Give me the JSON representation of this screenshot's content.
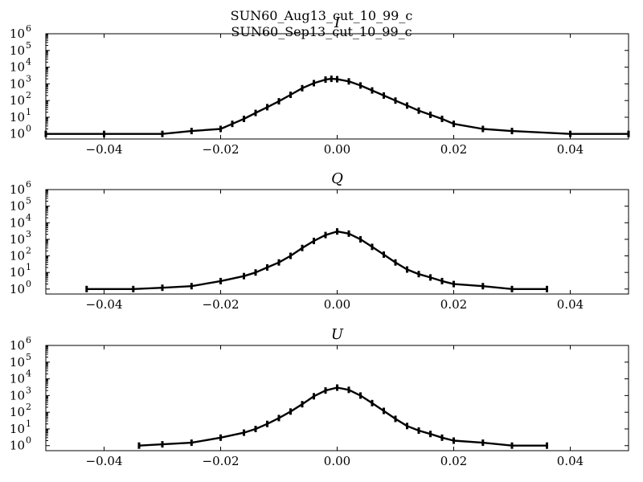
{
  "figure": {
    "title_lines": [
      "SUN60_Aug13_cut_10_99_c",
      "SUN60_Sep13_cut_10_99_c"
    ]
  },
  "chart_data": [
    {
      "type": "histogram",
      "title": "I",
      "xlim": [
        -0.05,
        0.05
      ],
      "ylim": [
        0.5,
        1000000
      ],
      "yscale": "log",
      "xticks": [
        "-0.04",
        "-0.02",
        "0.00",
        "0.02",
        "0.04"
      ],
      "yticks": [
        {
          "base": "10",
          "exp": "0"
        },
        {
          "base": "10",
          "exp": "1"
        },
        {
          "base": "10",
          "exp": "2"
        },
        {
          "base": "10",
          "exp": "3"
        },
        {
          "base": "10",
          "exp": "4"
        },
        {
          "base": "10",
          "exp": "5"
        },
        {
          "base": "10",
          "exp": "6"
        }
      ],
      "grid": false,
      "color": "#000000",
      "series": [
        {
          "x": [
            -0.05,
            -0.04,
            -0.03,
            -0.025,
            -0.02,
            -0.018,
            -0.016,
            -0.014,
            -0.012,
            -0.01,
            -0.008,
            -0.006,
            -0.004,
            -0.002,
            -0.001,
            0.0,
            0.002,
            0.004,
            0.006,
            0.008,
            0.01,
            0.012,
            0.014,
            0.016,
            0.018,
            0.02,
            0.025,
            0.03,
            0.04,
            0.05
          ],
          "y": [
            1,
            1,
            1,
            1.5,
            2,
            4,
            8,
            18,
            40,
            90,
            220,
            550,
            1100,
            1800,
            2000,
            1900,
            1400,
            800,
            400,
            200,
            100,
            50,
            25,
            14,
            8,
            4,
            2,
            1.5,
            1,
            1
          ]
        }
      ]
    },
    {
      "type": "histogram",
      "title": "Q",
      "xlim": [
        -0.05,
        0.05
      ],
      "ylim": [
        0.5,
        1000000
      ],
      "yscale": "log",
      "xticks": [
        "-0.04",
        "-0.02",
        "0.00",
        "0.02",
        "0.04"
      ],
      "yticks": [
        {
          "base": "10",
          "exp": "0"
        },
        {
          "base": "10",
          "exp": "1"
        },
        {
          "base": "10",
          "exp": "2"
        },
        {
          "base": "10",
          "exp": "3"
        },
        {
          "base": "10",
          "exp": "4"
        },
        {
          "base": "10",
          "exp": "5"
        },
        {
          "base": "10",
          "exp": "6"
        }
      ],
      "grid": false,
      "color": "#000000",
      "series": [
        {
          "x": [
            -0.043,
            -0.035,
            -0.03,
            -0.025,
            -0.02,
            -0.016,
            -0.014,
            -0.012,
            -0.01,
            -0.008,
            -0.006,
            -0.004,
            -0.002,
            0.0,
            0.002,
            0.004,
            0.006,
            0.008,
            0.01,
            0.012,
            0.014,
            0.016,
            0.018,
            0.02,
            0.025,
            0.03,
            0.036
          ],
          "y": [
            1,
            1,
            1.2,
            1.5,
            3,
            6,
            10,
            20,
            40,
            100,
            300,
            800,
            1800,
            3000,
            2200,
            1000,
            350,
            120,
            40,
            15,
            8,
            5,
            3,
            2,
            1.5,
            1,
            1
          ]
        }
      ]
    },
    {
      "type": "histogram",
      "title": "U",
      "xlim": [
        -0.05,
        0.05
      ],
      "ylim": [
        0.5,
        1000000
      ],
      "yscale": "log",
      "xticks": [
        "-0.04",
        "-0.02",
        "0.00",
        "0.02",
        "0.04"
      ],
      "yticks": [
        {
          "base": "10",
          "exp": "0"
        },
        {
          "base": "10",
          "exp": "1"
        },
        {
          "base": "10",
          "exp": "2"
        },
        {
          "base": "10",
          "exp": "3"
        },
        {
          "base": "10",
          "exp": "4"
        },
        {
          "base": "10",
          "exp": "5"
        },
        {
          "base": "10",
          "exp": "6"
        }
      ],
      "grid": false,
      "color": "#000000",
      "series": [
        {
          "x": [
            -0.034,
            -0.03,
            -0.025,
            -0.02,
            -0.016,
            -0.014,
            -0.012,
            -0.01,
            -0.008,
            -0.006,
            -0.004,
            -0.002,
            0.0,
            0.002,
            0.004,
            0.006,
            0.008,
            0.01,
            0.012,
            0.014,
            0.016,
            0.018,
            0.02,
            0.025,
            0.03,
            0.036
          ],
          "y": [
            1,
            1.2,
            1.5,
            3,
            6,
            10,
            20,
            45,
            110,
            300,
            900,
            2000,
            3000,
            2200,
            1000,
            350,
            120,
            40,
            15,
            8,
            5,
            3,
            2,
            1.5,
            1,
            1
          ]
        }
      ]
    }
  ]
}
